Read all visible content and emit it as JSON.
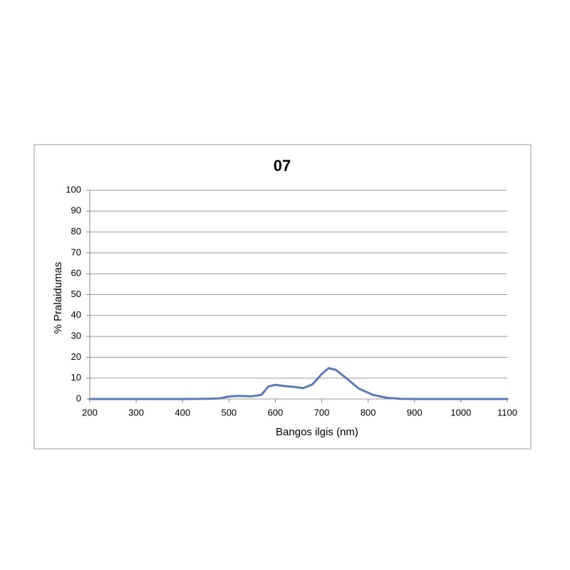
{
  "chart_data": {
    "type": "line",
    "title": "07",
    "x_label": "Bangos ilgis (nm)",
    "y_label": "% Pralaidumas",
    "x": [
      200,
      300,
      400,
      450,
      480,
      500,
      520,
      550,
      570,
      585,
      600,
      620,
      640,
      660,
      680,
      700,
      715,
      730,
      750,
      780,
      810,
      840,
      870,
      900,
      1000,
      1100
    ],
    "series": [
      {
        "name": "07",
        "color": "#5b7bb4",
        "values": [
          0,
          0,
          0,
          0.1,
          0.3,
          1.2,
          1.5,
          1.3,
          2,
          6,
          6.8,
          6.2,
          5.8,
          5.2,
          7,
          12,
          14.8,
          14,
          10.5,
          5,
          2,
          0.6,
          0.1,
          0,
          0,
          0
        ]
      }
    ],
    "xlim": [
      200,
      1100
    ],
    "xticks": [
      200,
      300,
      400,
      500,
      600,
      700,
      800,
      900,
      1000,
      1100
    ],
    "ylim": [
      0,
      100
    ],
    "yticks": [
      0,
      10,
      20,
      30,
      40,
      50,
      60,
      70,
      80,
      90,
      100
    ],
    "grid": true
  }
}
